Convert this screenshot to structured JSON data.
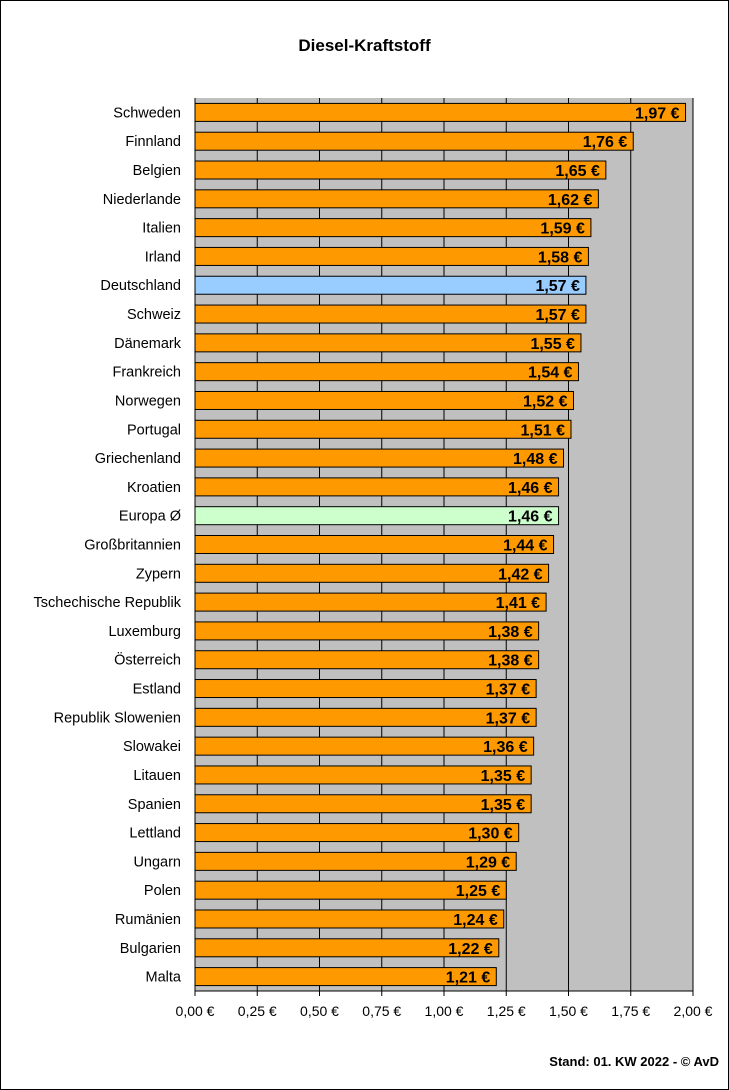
{
  "chart_data": {
    "type": "bar",
    "orientation": "horizontal",
    "title": "Diesel-Kraftstoff",
    "footer": "Stand: 01. KW 2022 - © AvD",
    "categories": [
      "Schweden",
      "Finnland",
      "Belgien",
      "Niederlande",
      "Italien",
      "Irland",
      "Deutschland",
      "Schweiz",
      "Dänemark",
      "Frankreich",
      "Norwegen",
      "Portugal",
      "Griechenland",
      "Kroatien",
      "Europa Ø",
      "Großbritannien",
      "Zypern",
      "Tschechische Republik",
      "Luxemburg",
      "Österreich",
      "Estland",
      "Republik Slowenien",
      "Slowakei",
      "Litauen",
      "Spanien",
      "Lettland",
      "Ungarn",
      "Polen",
      "Rumänien",
      "Bulgarien",
      "Malta"
    ],
    "values": [
      1.97,
      1.76,
      1.65,
      1.62,
      1.59,
      1.58,
      1.57,
      1.57,
      1.55,
      1.54,
      1.52,
      1.51,
      1.48,
      1.46,
      1.46,
      1.44,
      1.42,
      1.41,
      1.38,
      1.38,
      1.37,
      1.37,
      1.36,
      1.35,
      1.35,
      1.3,
      1.29,
      1.25,
      1.24,
      1.22,
      1.21
    ],
    "value_labels": [
      "1,97 €",
      "1,76 €",
      "1,65 €",
      "1,62 €",
      "1,59 €",
      "1,58 €",
      "1,57 €",
      "1,57 €",
      "1,55 €",
      "1,54 €",
      "1,52 €",
      "1,51 €",
      "1,48 €",
      "1,46 €",
      "1,46 €",
      "1,44 €",
      "1,42 €",
      "1,41 €",
      "1,38 €",
      "1,38 €",
      "1,37 €",
      "1,37 €",
      "1,36 €",
      "1,35 €",
      "1,35 €",
      "1,30 €",
      "1,29 €",
      "1,25 €",
      "1,24 €",
      "1,22 €",
      "1,21 €"
    ],
    "highlights": {
      "Deutschland": "#99ccff",
      "Europa Ø": "#ccffcc"
    },
    "bar_color": "#ff9900",
    "plot_background": "#c0c0c0",
    "xlim": [
      0,
      2.0
    ],
    "xticks": [
      0,
      0.25,
      0.5,
      0.75,
      1.0,
      1.25,
      1.5,
      1.75,
      2.0
    ],
    "xtick_labels": [
      "0,00 €",
      "0,25 €",
      "0,50 €",
      "0,75 €",
      "1,00 €",
      "1,25 €",
      "1,50 €",
      "1,75 €",
      "2,00 €"
    ],
    "grid": true,
    "legend": "none"
  }
}
